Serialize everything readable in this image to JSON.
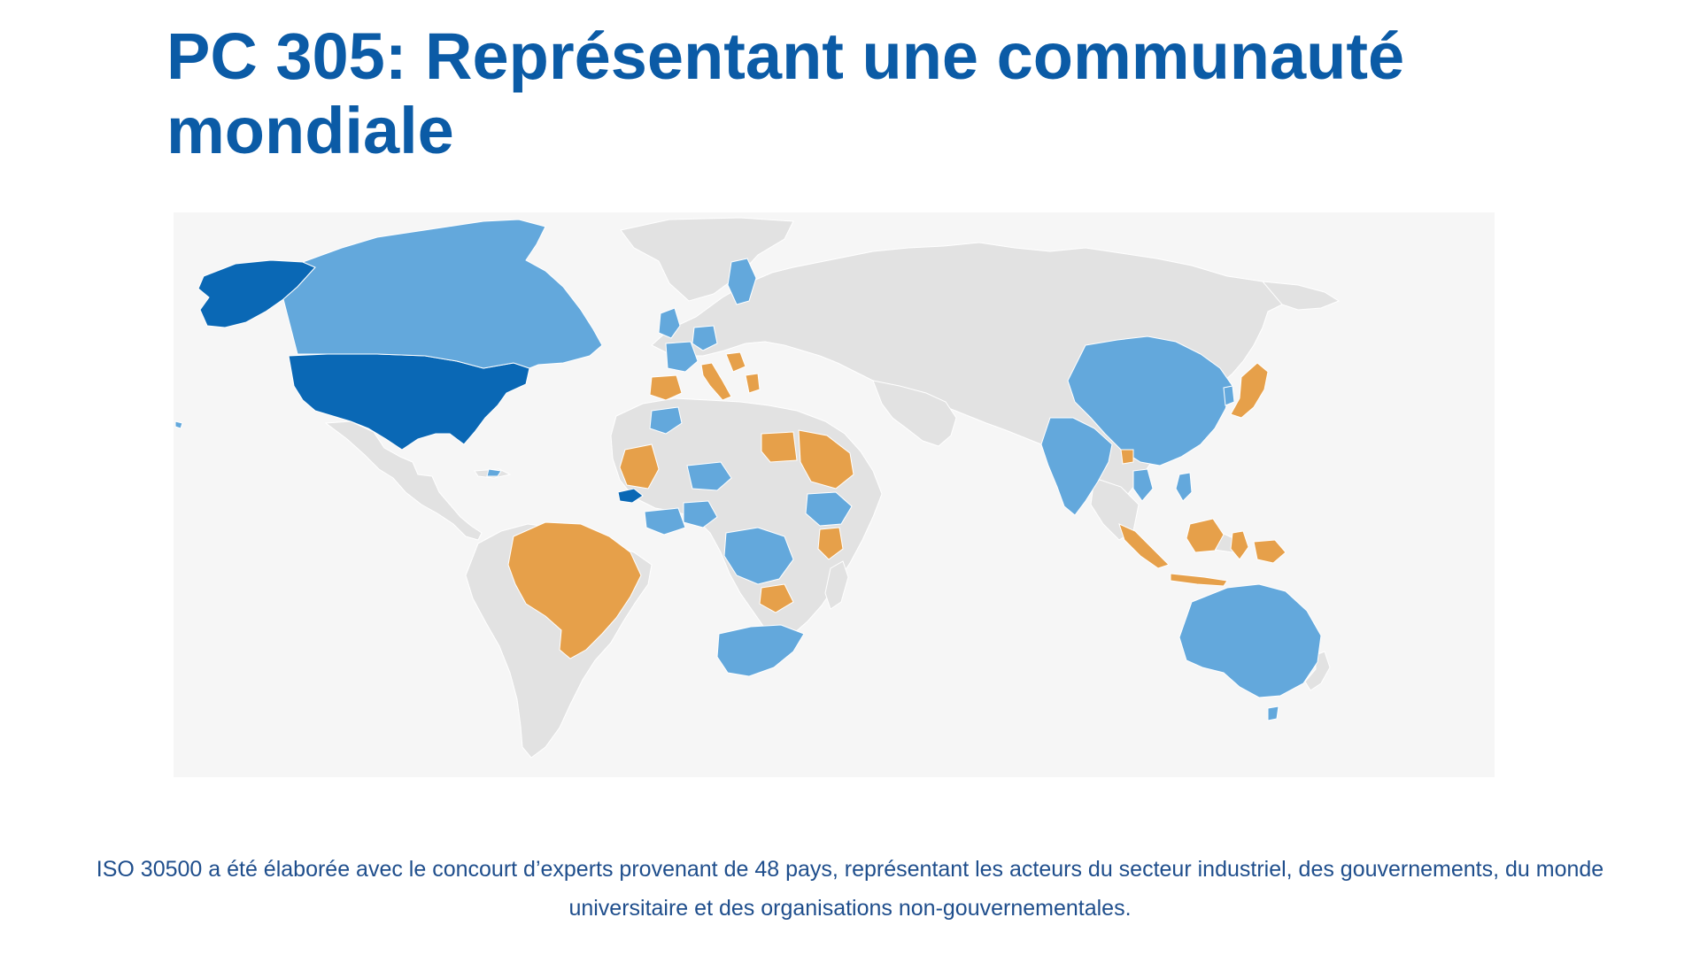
{
  "slide": {
    "title_line1": "PC 305: Représentant une communauté",
    "title_line2": "mondiale",
    "caption": "ISO 30500 a été élaborée avec le concourt d’experts provenant de 48 pays, représentant les acteurs du secteur industriel, des gouvernements, du monde universitaire et des organisations non-gouvernementales.",
    "footer_mark": "."
  },
  "map": {
    "colors": {
      "background": "#f6f6f6",
      "land": "#e2e2e2",
      "dark_blue": "#0a68b5",
      "light_blue": "#63a8dc",
      "orange": "#e6a04a"
    },
    "highlighted_regions": [
      {
        "name": "Alaska",
        "color": "dark_blue"
      },
      {
        "name": "Canada",
        "color": "light_blue"
      },
      {
        "name": "United States",
        "color": "dark_blue"
      },
      {
        "name": "Senegal",
        "color": "dark_blue"
      },
      {
        "name": "Brazil",
        "color": "orange"
      },
      {
        "name": "Spain",
        "color": "orange"
      },
      {
        "name": "Italy",
        "color": "orange"
      },
      {
        "name": "Mauritania",
        "color": "orange"
      },
      {
        "name": "Egypt",
        "color": "orange"
      },
      {
        "name": "Saudi Arabia",
        "color": "orange"
      },
      {
        "name": "Kenya",
        "color": "orange"
      },
      {
        "name": "Zambia",
        "color": "orange"
      },
      {
        "name": "Japan",
        "color": "orange"
      },
      {
        "name": "Indonesia",
        "color": "orange"
      },
      {
        "name": "Bangladesh",
        "color": "orange"
      },
      {
        "name": "China",
        "color": "light_blue"
      },
      {
        "name": "India",
        "color": "light_blue"
      },
      {
        "name": "Australia",
        "color": "light_blue"
      },
      {
        "name": "South Africa",
        "color": "light_blue"
      },
      {
        "name": "DR Congo",
        "color": "light_blue"
      },
      {
        "name": "Ethiopia",
        "color": "light_blue"
      },
      {
        "name": "Nigeria",
        "color": "light_blue"
      },
      {
        "name": "Niger",
        "color": "light_blue"
      },
      {
        "name": "Morocco",
        "color": "light_blue"
      },
      {
        "name": "Sweden",
        "color": "light_blue"
      },
      {
        "name": "France",
        "color": "light_blue"
      },
      {
        "name": "Germany",
        "color": "light_blue"
      },
      {
        "name": "United Kingdom",
        "color": "light_blue"
      },
      {
        "name": "Thailand",
        "color": "light_blue"
      },
      {
        "name": "Philippines",
        "color": "light_blue"
      },
      {
        "name": "South Korea",
        "color": "light_blue"
      }
    ]
  }
}
